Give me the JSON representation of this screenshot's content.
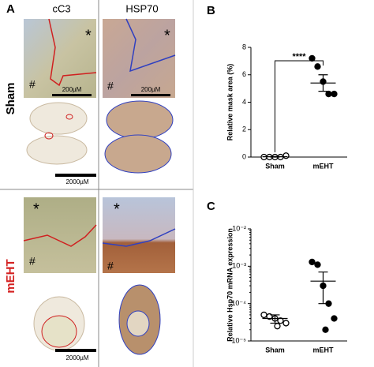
{
  "panel_a": {
    "label": "A",
    "columns": [
      "cC3",
      "HSP70"
    ],
    "rows": [
      "Sham",
      "mEHT"
    ],
    "marker_tumor": "*",
    "marker_normal": "#",
    "scale_small": "200µM",
    "scale_large": "2000µM"
  },
  "chart_data": [
    {
      "type": "dot",
      "panel_label": "B",
      "y_label": "Relative mask area (%)",
      "categories": [
        "Sham",
        "mEHT"
      ],
      "values": [
        [
          0,
          0,
          0,
          0,
          0.1
        ],
        [
          7.2,
          6.6,
          5.5,
          4.6,
          4.6
        ]
      ],
      "means": [
        0.02,
        5.4
      ],
      "errors": [
        0.02,
        0.6
      ],
      "markers": [
        "open",
        "filled"
      ],
      "color": "#000000",
      "ylim": [
        0,
        8
      ],
      "yticks": [
        0,
        2,
        4,
        6,
        8
      ],
      "log_y": false,
      "significance": "****"
    },
    {
      "type": "dot",
      "panel_label": "C",
      "y_label": "Relative Hsp70 mRNA expression",
      "categories": [
        "Sham",
        "mEHT"
      ],
      "values": [
        [
          5e-05,
          4.5e-05,
          4e-05,
          3.5e-05,
          3e-05,
          2.5e-05
        ],
        [
          0.0013,
          0.0011,
          0.0003,
          0.0001,
          4e-05,
          2e-05
        ]
      ],
      "means": [
        4e-05,
        0.0004
      ],
      "errors": [
        1e-05,
        0.0003
      ],
      "markers": [
        "open",
        "filled"
      ],
      "color": "#000000",
      "ylim": [
        1e-05,
        0.01
      ],
      "log_y": true,
      "yticks": [
        {
          "value": 1e-05,
          "label": "10⁻⁵"
        },
        {
          "value": 0.0001,
          "label": "10⁻⁴"
        },
        {
          "value": 0.001,
          "label": "10⁻³"
        },
        {
          "value": 0.01,
          "label": "10⁻²"
        }
      ]
    }
  ]
}
